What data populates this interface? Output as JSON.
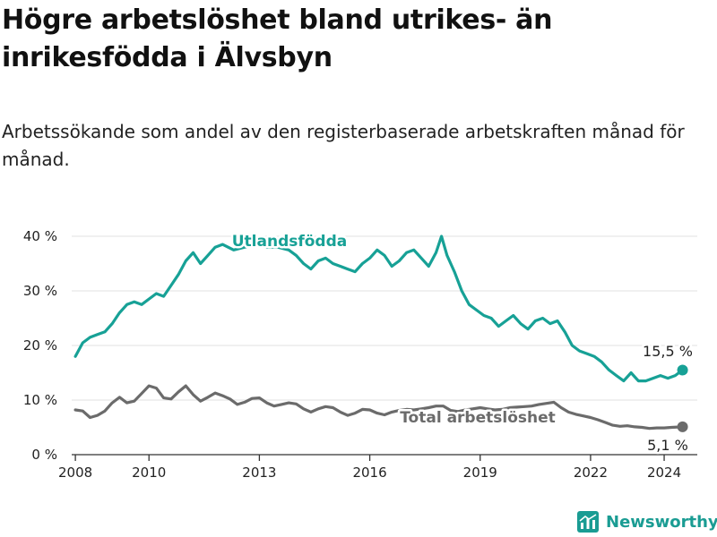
{
  "title": "Högre arbetslöshet bland utrikes- än inrikesfödda i Älvsbyn",
  "subtitle": "Arbetssökande som andel av den registerbaserade arbetskraften månad för månad.",
  "brand": {
    "name": "Newsworthy",
    "icon": "newsworthy-logo-icon"
  },
  "colors": {
    "utlandsfodda": "#17a196",
    "total": "#6b6b6b",
    "grid": "#e2e2e2",
    "text": "#222222"
  },
  "chart_data": {
    "type": "line",
    "title": "Högre arbetslöshet bland utrikes- än inrikesfödda i Älvsbyn",
    "xlabel": "",
    "ylabel": "",
    "xlim": [
      2007.9,
      2024.9
    ],
    "ylim": [
      0,
      40
    ],
    "yticks": [
      0,
      10,
      20,
      30,
      40
    ],
    "ytick_labels": [
      "0 %",
      "10 %",
      "20 %",
      "30 %",
      "40 %"
    ],
    "xticks": [
      2008,
      2010,
      2013,
      2016,
      2019,
      2022,
      2024
    ],
    "xtick_labels": [
      "2008",
      "2010",
      "2013",
      "2016",
      "2019",
      "2022",
      "2024"
    ],
    "grid": true,
    "series": [
      {
        "name": "Utlandsfödda",
        "label": "Utlandsfödda",
        "end_label": "15,5 %",
        "x": [
          2008.0,
          2008.2,
          2008.4,
          2008.6,
          2008.8,
          2009.0,
          2009.2,
          2009.4,
          2009.6,
          2009.8,
          2010.0,
          2010.2,
          2010.4,
          2010.6,
          2010.8,
          2011.0,
          2011.2,
          2011.4,
          2011.6,
          2011.8,
          2012.0,
          2012.3,
          2012.6,
          2012.9,
          2013.2,
          2013.5,
          2013.8,
          2014.0,
          2014.2,
          2014.4,
          2014.6,
          2014.8,
          2015.0,
          2015.2,
          2015.4,
          2015.6,
          2015.8,
          2016.0,
          2016.2,
          2016.4,
          2016.6,
          2016.8,
          2017.0,
          2017.2,
          2017.4,
          2017.6,
          2017.8,
          2017.95,
          2018.1,
          2018.3,
          2018.5,
          2018.7,
          2018.9,
          2019.1,
          2019.3,
          2019.5,
          2019.7,
          2019.9,
          2020.1,
          2020.3,
          2020.5,
          2020.7,
          2020.9,
          2021.1,
          2021.3,
          2021.5,
          2021.7,
          2021.9,
          2022.1,
          2022.3,
          2022.5,
          2022.7,
          2022.9,
          2023.1,
          2023.3,
          2023.5,
          2023.7,
          2023.9,
          2024.1,
          2024.3,
          2024.5
        ],
        "values": [
          18,
          20.5,
          21.5,
          22,
          22.5,
          24,
          26,
          27.5,
          28,
          27.5,
          28.5,
          29.5,
          29,
          31,
          33,
          35.5,
          37,
          35,
          36.5,
          38,
          38.5,
          37.5,
          38,
          38.5,
          38,
          38,
          37.5,
          36.5,
          35,
          34,
          35.5,
          36,
          35,
          34.5,
          34,
          33.5,
          35,
          36,
          37.5,
          36.5,
          34.5,
          35.5,
          37,
          37.5,
          36,
          34.5,
          37,
          40,
          36.5,
          33.5,
          30,
          27.5,
          26.5,
          25.5,
          25,
          23.5,
          24.5,
          25.5,
          24,
          23,
          24.5,
          25,
          24,
          24.5,
          22.5,
          20,
          19,
          18.5,
          18,
          17,
          15.5,
          14.5,
          13.5,
          15,
          13.5,
          13.5,
          14,
          14.5,
          14,
          14.5,
          15.5
        ]
      },
      {
        "name": "Total arbetslöshet",
        "label": "Total arbetslöshet",
        "end_label": "5,1 %",
        "x": [
          2008.0,
          2008.2,
          2008.4,
          2008.6,
          2008.8,
          2009.0,
          2009.2,
          2009.4,
          2009.6,
          2009.8,
          2010.0,
          2010.2,
          2010.4,
          2010.6,
          2010.8,
          2011.0,
          2011.2,
          2011.4,
          2011.6,
          2011.8,
          2012.0,
          2012.2,
          2012.4,
          2012.6,
          2012.8,
          2013.0,
          2013.2,
          2013.4,
          2013.6,
          2013.8,
          2014.0,
          2014.2,
          2014.4,
          2014.6,
          2014.8,
          2015.0,
          2015.2,
          2015.4,
          2015.6,
          2015.8,
          2016.0,
          2016.2,
          2016.4,
          2016.6,
          2016.8,
          2017.0,
          2017.2,
          2017.4,
          2017.6,
          2017.8,
          2018.0,
          2018.2,
          2018.4,
          2018.6,
          2018.8,
          2019.0,
          2019.2,
          2019.4,
          2019.6,
          2019.8,
          2020.0,
          2020.2,
          2020.4,
          2020.6,
          2020.8,
          2021.0,
          2021.2,
          2021.4,
          2021.6,
          2021.8,
          2022.0,
          2022.2,
          2022.4,
          2022.6,
          2022.8,
          2023.0,
          2023.2,
          2023.4,
          2023.6,
          2023.8,
          2024.0,
          2024.2,
          2024.5
        ],
        "values": [
          8.2,
          8,
          6.8,
          7.2,
          8,
          9.5,
          10.5,
          9.5,
          9.8,
          11.2,
          12.6,
          12.2,
          10.4,
          10.2,
          11.5,
          12.6,
          11,
          9.8,
          10.5,
          11.3,
          10.8,
          10.2,
          9.2,
          9.6,
          10.3,
          10.4,
          9.5,
          8.9,
          9.2,
          9.5,
          9.3,
          8.4,
          7.8,
          8.4,
          8.8,
          8.6,
          7.8,
          7.2,
          7.6,
          8.3,
          8.2,
          7.6,
          7.3,
          7.8,
          8.1,
          8.3,
          8.2,
          8.4,
          8.6,
          8.9,
          8.9,
          8.1,
          7.9,
          8.2,
          8.4,
          8.6,
          8.4,
          8.2,
          8.3,
          8.6,
          8.7,
          8.8,
          8.9,
          9.2,
          9.4,
          9.6,
          8.6,
          7.8,
          7.4,
          7.1,
          6.8,
          6.4,
          5.9,
          5.4,
          5.2,
          5.3,
          5.1,
          5,
          4.8,
          4.9,
          4.9,
          5,
          5.1
        ]
      }
    ]
  }
}
